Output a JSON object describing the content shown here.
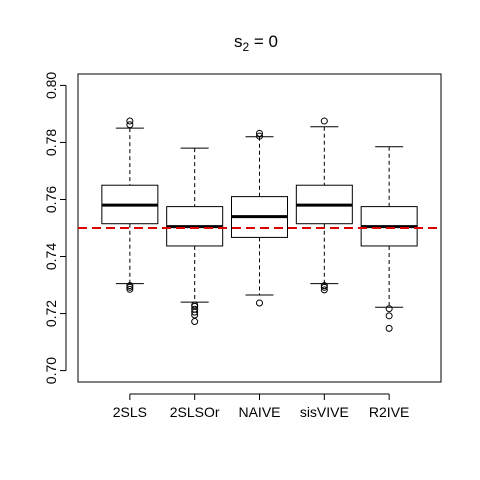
{
  "chart_data": {
    "type": "boxplot",
    "title_main": "s",
    "title_sub": "2",
    "title_rest": " = 0",
    "categories": [
      "2SLS",
      "2SLSOr",
      "NAIVE",
      "sisVIVE",
      "R2IVE"
    ],
    "ylim": [
      0.696,
      0.804
    ],
    "yticks": [
      0.7,
      0.72,
      0.74,
      0.76,
      0.78,
      0.8
    ],
    "ytick_labels": [
      "0.70",
      "0.72",
      "0.74",
      "0.76",
      "0.78",
      "0.80"
    ],
    "reference_line": {
      "value": 0.75,
      "color": "#dd0000",
      "style": "dashed"
    },
    "boxes": [
      {
        "name": "2SLS",
        "whisker_low": 0.7305,
        "q1": 0.7515,
        "median": 0.758,
        "q3": 0.765,
        "whisker_high": 0.785,
        "outliers": [
          0.7285,
          0.7292,
          0.7298,
          0.7862,
          0.7875
        ]
      },
      {
        "name": "2SLSOr",
        "whisker_low": 0.724,
        "q1": 0.7437,
        "median": 0.7505,
        "q3": 0.7575,
        "whisker_high": 0.778,
        "outliers": [
          0.7172,
          0.7195,
          0.7205,
          0.7215,
          0.7225,
          0.723
        ]
      },
      {
        "name": "NAIVE",
        "whisker_low": 0.7265,
        "q1": 0.7467,
        "median": 0.754,
        "q3": 0.761,
        "whisker_high": 0.782,
        "outliers": [
          0.7237,
          0.7822,
          0.7832
        ]
      },
      {
        "name": "sisVIVE",
        "whisker_low": 0.7305,
        "q1": 0.7515,
        "median": 0.758,
        "q3": 0.765,
        "whisker_high": 0.7855,
        "outliers": [
          0.7283,
          0.7292,
          0.7298,
          0.7875
        ]
      },
      {
        "name": "R2IVE",
        "whisker_low": 0.7222,
        "q1": 0.7437,
        "median": 0.7505,
        "q3": 0.7575,
        "whisker_high": 0.7785,
        "outliers": [
          0.7148,
          0.7192,
          0.7217
        ]
      }
    ],
    "grid": false,
    "legend": "none"
  }
}
